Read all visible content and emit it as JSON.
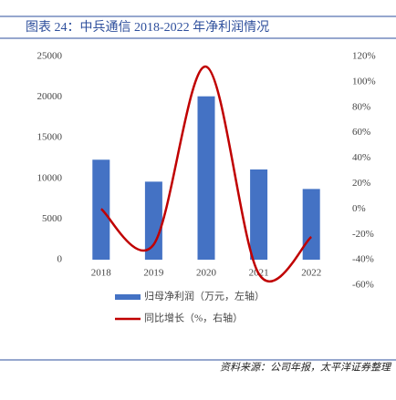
{
  "chart_data": {
    "type": "bar-line",
    "title": "图表 24：中兵通信 2018-2022 年净利润情况",
    "categories": [
      "2018",
      "2019",
      "2020",
      "2021",
      "2022"
    ],
    "series": [
      {
        "name": "归母净利润（万元，左轴）",
        "color": "#4472c4",
        "type": "bar",
        "values": [
          12300,
          9600,
          20100,
          11100,
          8700
        ]
      },
      {
        "name": "同比增长（%，右轴）",
        "color": "#c00000",
        "type": "line",
        "axis": "y2",
        "values": [
          0,
          -28,
          112,
          -51,
          -22
        ]
      }
    ],
    "ylim": [
      0,
      25000
    ],
    "yticks": [
      0,
      5000,
      10000,
      15000,
      20000,
      25000
    ],
    "y2lim": [
      -60,
      120
    ],
    "y2ticks": [
      {
        "value": -60,
        "label": "-60%"
      },
      {
        "value": -40,
        "label": "-40%"
      },
      {
        "value": -20,
        "label": "-20%"
      },
      {
        "value": 0,
        "label": "0%"
      },
      {
        "value": 20,
        "label": "20%"
      },
      {
        "value": 40,
        "label": "40%"
      },
      {
        "value": 60,
        "label": "60%"
      },
      {
        "value": 80,
        "label": "80%"
      },
      {
        "value": 100,
        "label": "100%"
      },
      {
        "value": 120,
        "label": "120%"
      }
    ],
    "source": "资料来源：公司年报，太平洋证券整理"
  }
}
